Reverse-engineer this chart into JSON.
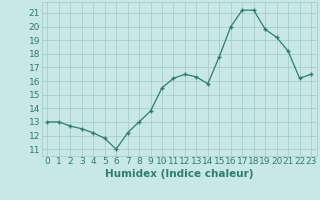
{
  "x": [
    0,
    1,
    2,
    3,
    4,
    5,
    6,
    7,
    8,
    9,
    10,
    11,
    12,
    13,
    14,
    15,
    16,
    17,
    18,
    19,
    20,
    21,
    22,
    23
  ],
  "y": [
    13,
    13,
    12.7,
    12.5,
    12.2,
    11.8,
    11.0,
    12.2,
    13.0,
    13.8,
    15.5,
    16.2,
    16.5,
    16.3,
    15.8,
    17.8,
    20.0,
    21.2,
    21.2,
    19.8,
    19.2,
    18.2,
    16.2,
    16.5
  ],
  "line_color": "#2e7d6e",
  "marker_color": "#2e7d6e",
  "bg_color": "#c8e8e8",
  "grid_color": "#a8cccc",
  "xlabel": "Humidex (Indice chaleur)",
  "ylabel_ticks": [
    11,
    12,
    13,
    14,
    15,
    16,
    17,
    18,
    19,
    20,
    21
  ],
  "ylim": [
    10.5,
    21.8
  ],
  "xlim": [
    -0.5,
    23.5
  ],
  "xlabel_fontsize": 7.5,
  "tick_fontsize": 6.5
}
